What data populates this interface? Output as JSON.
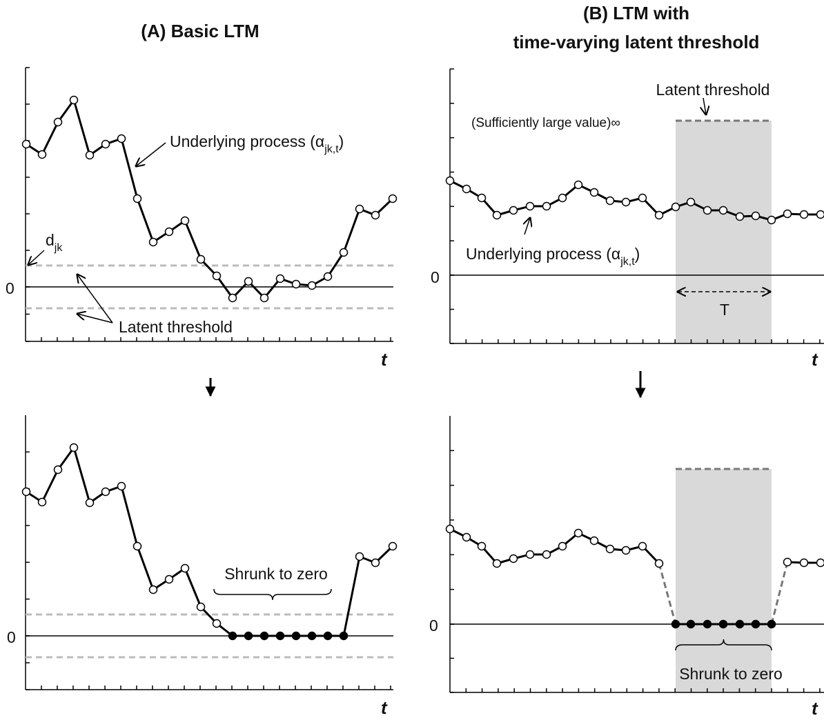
{
  "panel_a_top": {
    "title": "(A) Basic LTM",
    "zero": "0",
    "time": "t",
    "process": {
      "name": "Underlying process (α",
      "subscript": "jk,t",
      "close": ")"
    },
    "threshold_name": {
      "name": "d",
      "subscript": "jk"
    },
    "threshold": "Latent threshold"
  },
  "panel_a_bottom": {
    "zero": "0",
    "time": "t",
    "annotation": "Shrunk to zero"
  },
  "panel_b_top": {
    "title": [
      "(B) LTM with",
      "time-varying latent threshold"
    ],
    "zero": "0",
    "time": "t",
    "threshold": "Latent threshold",
    "large_value": "(Sufficiently large value)∞",
    "process": {
      "name": "Underlying process (α",
      "subscript": "jk,t",
      "close": ")"
    },
    "window": "T"
  },
  "panel_b_bottom": {
    "zero": "0",
    "time": "t",
    "annotation": "Shrunk to zero"
  }
}
